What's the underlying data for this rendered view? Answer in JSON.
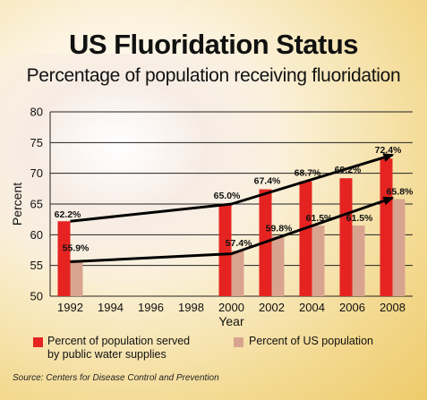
{
  "title": "US Fluoridation Status",
  "subtitle": "Percentage of population receiving fluoridation",
  "source": "Source: Centers for Disease Control and Prevention",
  "chart_data": {
    "type": "bar",
    "xlabel": "Year",
    "ylabel": "Percent",
    "ylim": [
      50,
      80
    ],
    "yticks": [
      50,
      55,
      60,
      65,
      70,
      75,
      80
    ],
    "categories": [
      "1992",
      "1994",
      "1996",
      "1998",
      "2000",
      "2002",
      "2004",
      "2006",
      "2008"
    ],
    "grid": true,
    "legend_position": "bottom",
    "series": [
      {
        "name": "Percent of population served by public water supplies",
        "color": "#e52421",
        "values": [
          62.2,
          null,
          null,
          null,
          65.0,
          67.4,
          68.7,
          69.2,
          72.4
        ],
        "labels": [
          "62.2%",
          "",
          "",
          "",
          "65.0%",
          "67.4%",
          "68.7%",
          "69.2%",
          "72.4%"
        ]
      },
      {
        "name": "Percent of US population",
        "color": "#d9a48f",
        "values": [
          55.9,
          null,
          null,
          null,
          57.4,
          59.8,
          61.5,
          61.5,
          65.8
        ],
        "labels": [
          "55.9%",
          "",
          "",
          "",
          "57.4%",
          "59.8%",
          "61.5%",
          "61.5%",
          "65.8%"
        ]
      }
    ],
    "trend_lines": [
      {
        "x": [
          "1992",
          "2000",
          "2008"
        ],
        "y": [
          62.2,
          65.0,
          73.0
        ]
      },
      {
        "x": [
          "1992",
          "2000",
          "2008"
        ],
        "y": [
          55.6,
          56.9,
          66.0
        ]
      }
    ]
  },
  "legend": {
    "item1": "Percent of population served",
    "item1b": "by public water supplies",
    "item2": "Percent of US population"
  }
}
